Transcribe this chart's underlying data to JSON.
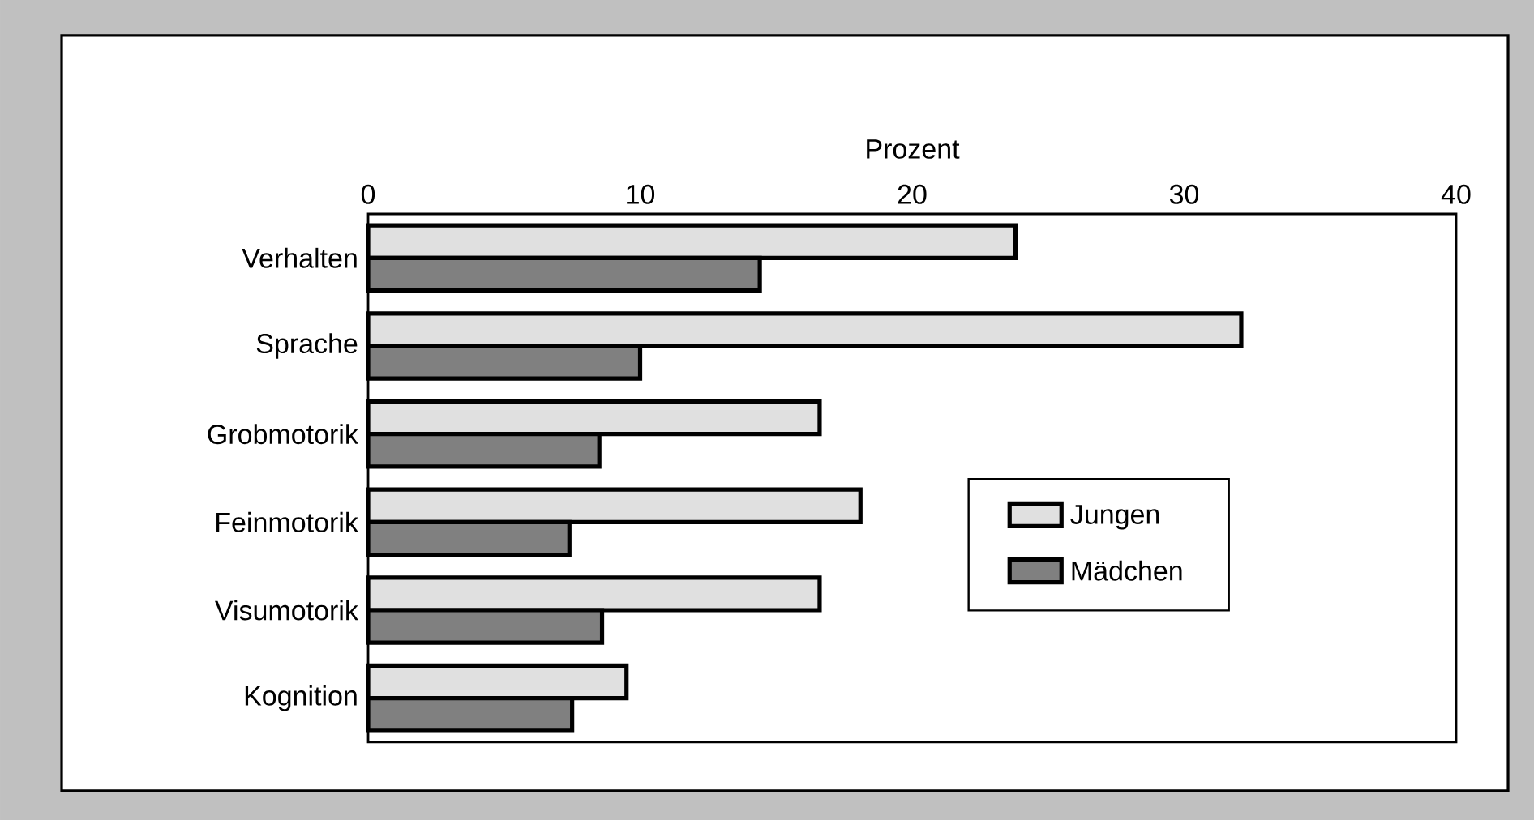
{
  "chart_data": {
    "type": "bar",
    "orientation": "horizontal",
    "xlabel": "Prozent",
    "categories": [
      "Verhalten",
      "Sprache",
      "Grobmotorik",
      "Feinmotorik",
      "Visumotorik",
      "Kognition"
    ],
    "series": [
      {
        "name": "Jungen",
        "color": "#e0e0e0",
        "values": [
          23.8,
          32.1,
          16.6,
          18.1,
          16.6,
          9.5
        ]
      },
      {
        "name": "Mädchen",
        "color": "#808080",
        "values": [
          14.4,
          10.0,
          8.5,
          7.4,
          8.6,
          7.5
        ]
      }
    ],
    "xlim": [
      0,
      40
    ],
    "xticks": [
      0,
      10,
      20,
      30,
      40
    ],
    "legend": "bottom right",
    "grid": false
  }
}
